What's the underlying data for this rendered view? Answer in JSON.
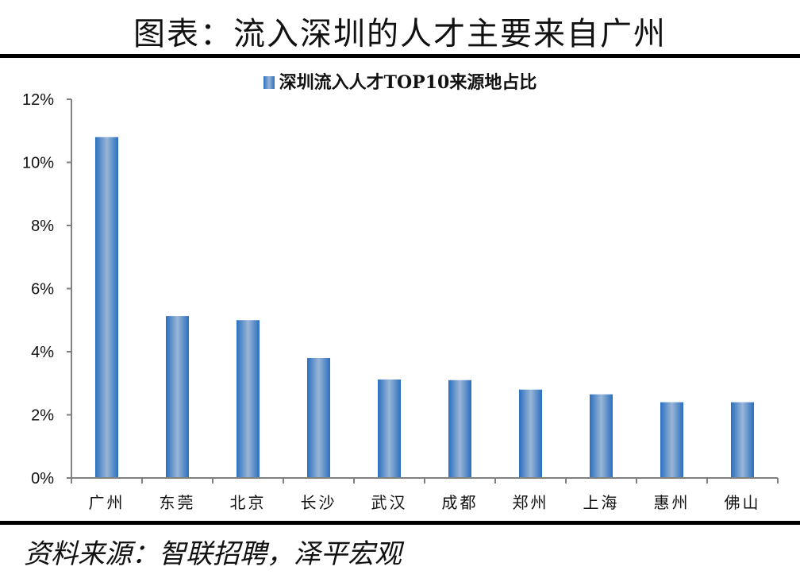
{
  "header": {
    "title": "图表：流入深圳的人才主要来自广州"
  },
  "footer": {
    "source": "资料来源：智联招聘，泽平宏观"
  },
  "colors": {
    "bar_edge": "#2a6fc0",
    "bar_center": "#9ab6d6",
    "axis": "#808080",
    "rule": "#000000"
  },
  "chart_data": {
    "type": "bar",
    "title": "深圳流入人才TOP10来源地占比",
    "legend": [
      "深圳流入人才TOP10来源地占比"
    ],
    "legend_position": "top",
    "categories": [
      "广州",
      "东莞",
      "北京",
      "长沙",
      "武汉",
      "成都",
      "郑州",
      "上海",
      "惠州",
      "佛山"
    ],
    "values": [
      10.8,
      5.13,
      5.0,
      3.8,
      3.12,
      3.1,
      2.8,
      2.65,
      2.4,
      2.4
    ],
    "unit": "%",
    "ylim": [
      0,
      12
    ],
    "yticks": [
      "0%",
      "2%",
      "4%",
      "6%",
      "8%",
      "10%",
      "12%"
    ],
    "xlabel": "",
    "ylabel": "",
    "grid": false
  }
}
